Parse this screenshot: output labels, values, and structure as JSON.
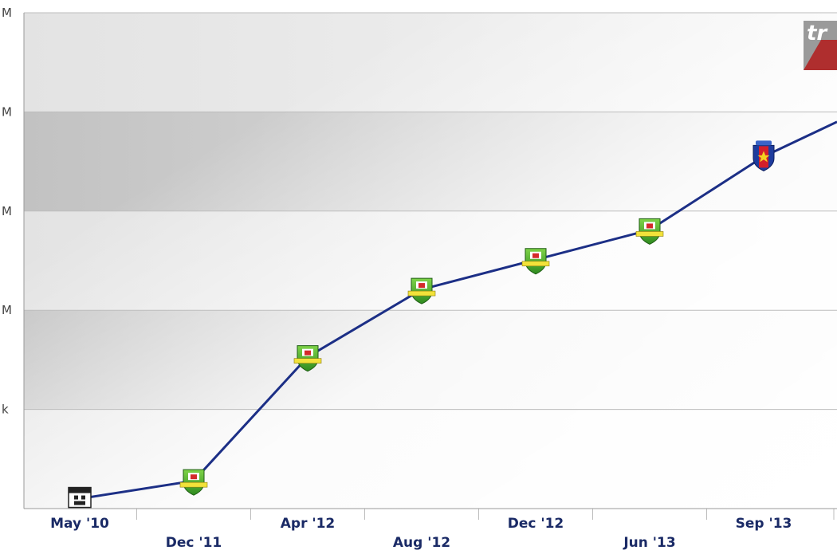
{
  "chart_data": {
    "type": "line",
    "title": "",
    "xlabel": "",
    "ylabel": "",
    "y_tick_labels": [
      "k",
      "M",
      "M",
      "M",
      "M"
    ],
    "ylim": [
      0,
      5
    ],
    "grid": true,
    "x_tick_labels": [
      "May '10",
      "Dec '11",
      "Apr '12",
      "Aug '12",
      "Dec '12",
      "Jun '13",
      "Sep '13"
    ],
    "series": [
      {
        "color": "#1c2f86",
        "points": [
          {
            "x": "May '10",
            "y": 0.1,
            "marker": "club-crest-black-white-icon"
          },
          {
            "x": "Dec '11",
            "y": 0.28,
            "marker": "club-crest-green-yellow-icon"
          },
          {
            "x": "Apr '12",
            "y": 1.53,
            "marker": "club-crest-green-yellow-icon"
          },
          {
            "x": "Aug '12",
            "y": 2.21,
            "marker": "club-crest-green-yellow-icon"
          },
          {
            "x": "Dec '12",
            "y": 2.51,
            "marker": "club-crest-green-yellow-icon"
          },
          {
            "x": "Jun '13",
            "y": 2.81,
            "marker": "club-crest-green-yellow-icon"
          },
          {
            "x": "Sep '13",
            "y": 3.55,
            "marker": "club-crest-red-blue-icon"
          }
        ],
        "continues_to": {
          "y": 3.9
        }
      }
    ],
    "colors": {
      "line": "#1c2f86",
      "band_light": "#ececec",
      "band_dark": "#c8c8c8",
      "gridline": "#bdbdbd",
      "axis_text": "#444444",
      "x_label": "#1a2a66"
    },
    "watermark_text": "tr"
  }
}
